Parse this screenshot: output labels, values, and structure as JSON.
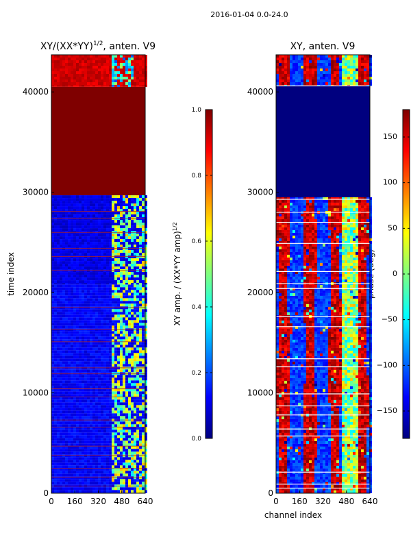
{
  "figure": {
    "suptitle": "2016-01-04 0.0-24.0"
  },
  "colors": {
    "jet": [
      "#00007f",
      "#0000ff",
      "#007fff",
      "#00ffff",
      "#7fff7f",
      "#ffff00",
      "#ff7f00",
      "#ff0000",
      "#7f0000"
    ]
  },
  "chart_data": [
    {
      "type": "heatmap",
      "title": "XY/(XX*YY)^{1/2}, anten. V9",
      "title_main": "XY/(XX*YY)",
      "title_sup": "1/2",
      "title_tail": ", anten. V9",
      "xlabel": "",
      "ylabel": "time index",
      "xlim": [
        0,
        640
      ],
      "ylim": [
        0,
        43700
      ],
      "xticks": [
        0,
        160,
        320,
        480,
        640
      ],
      "yticks": [
        0,
        10000,
        20000,
        30000,
        40000
      ],
      "colorbar": {
        "label_main": "XY amp. / (XX*YY amp)",
        "label_sup": "1/2",
        "range": [
          0.0,
          1.0
        ],
        "ticks": [
          "0.0",
          "0.2",
          "0.4",
          "0.6",
          "0.8",
          "1.0"
        ],
        "tick_values": [
          0.0,
          0.2,
          0.4,
          0.6,
          0.8,
          1.0
        ]
      },
      "bands": [
        {
          "y0": 0,
          "y1": 20800,
          "base": 0.12,
          "hot_x0": 400,
          "hot_x1": 640,
          "hot": 0.45
        },
        {
          "y0": 20800,
          "y1": 29700,
          "base": 0.1,
          "hot_x0": 400,
          "hot_x1": 640,
          "hot": 0.45
        },
        {
          "y0": 29700,
          "y1": 40500,
          "base": 1.0,
          "hot_x0": 0,
          "hot_x1": 0,
          "hot": 1.0
        },
        {
          "y0": 40500,
          "y1": 43700,
          "base": 0.92,
          "hot_x0": 400,
          "hot_x1": 560,
          "hot": 0.3
        }
      ],
      "flag_rows": [
        700,
        1600,
        2500,
        3800,
        4700,
        6600,
        7300,
        9600,
        10400,
        11900,
        12500,
        15100,
        16300,
        18500,
        22200,
        23600,
        24400,
        26000,
        27400,
        28100
      ]
    },
    {
      "type": "heatmap",
      "title": "XY, anten. V9",
      "xlabel": "channel index",
      "ylabel": "",
      "xlim": [
        0,
        640
      ],
      "ylim": [
        0,
        43700
      ],
      "xticks": [
        0,
        160,
        320,
        480,
        640
      ],
      "yticks": [
        0,
        10000,
        20000,
        30000,
        40000
      ],
      "colorbar": {
        "label": "phase (deg)",
        "range": [
          -180,
          180
        ],
        "ticks": [
          "−150",
          "−100",
          "−50",
          "0",
          "50",
          "100",
          "150"
        ],
        "tick_values": [
          -150,
          -100,
          -50,
          0,
          50,
          100,
          150
        ]
      },
      "bands": [
        {
          "y0": 0,
          "y1": 29500,
          "pattern": "stripes"
        },
        {
          "y0": 29500,
          "y1": 40600,
          "pattern": "uniform",
          "value": -180
        },
        {
          "y0": 40600,
          "y1": 43700,
          "pattern": "stripes"
        }
      ],
      "flag_rows": [
        500,
        900,
        2100,
        5700,
        6400,
        7800,
        8700,
        9900,
        12600,
        13400,
        16600,
        17600,
        20400,
        20900,
        22100,
        24900,
        27000,
        28000,
        29300,
        40600
      ]
    }
  ]
}
